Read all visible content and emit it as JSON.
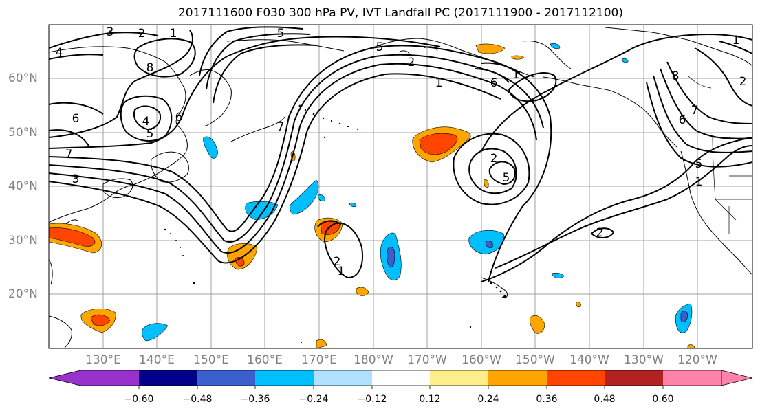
{
  "title": "2017111600 F030 300 hPa PV, IVT Landfall PC (2017111900 - 2017112100)",
  "map": {
    "lat_labels": [
      "60°N",
      "50°N",
      "40°N",
      "30°N",
      "20°N"
    ],
    "lon_labels": [
      "130°E",
      "140°E",
      "150°E",
      "160°E",
      "170°E",
      "180°W",
      "170°W",
      "160°W",
      "150°W",
      "140°W",
      "130°W",
      "120°W"
    ],
    "contour_labels": [
      "3",
      "2",
      "1",
      "4",
      "8",
      "6",
      "7",
      "5",
      "4",
      "5",
      "6",
      "7",
      "3",
      "5",
      "1",
      "2",
      "6",
      "2",
      "5",
      "2",
      "1",
      "1",
      "2",
      "8",
      "6",
      "7",
      "1",
      "5",
      "2",
      "1"
    ]
  },
  "colorbar": {
    "tick_labels": [
      "−0.60",
      "−0.48",
      "−0.36",
      "−0.24",
      "−0.12",
      "0.12",
      "0.24",
      "0.36",
      "0.48",
      "0.60"
    ],
    "colors": [
      "#9932cc",
      "#00008b",
      "#3a5fcd",
      "#00bfff",
      "#b0e2ff",
      "#ffffff",
      "#ffec8b",
      "#ffa500",
      "#ff4500",
      "#b22222",
      "#ff82ab"
    ]
  }
}
